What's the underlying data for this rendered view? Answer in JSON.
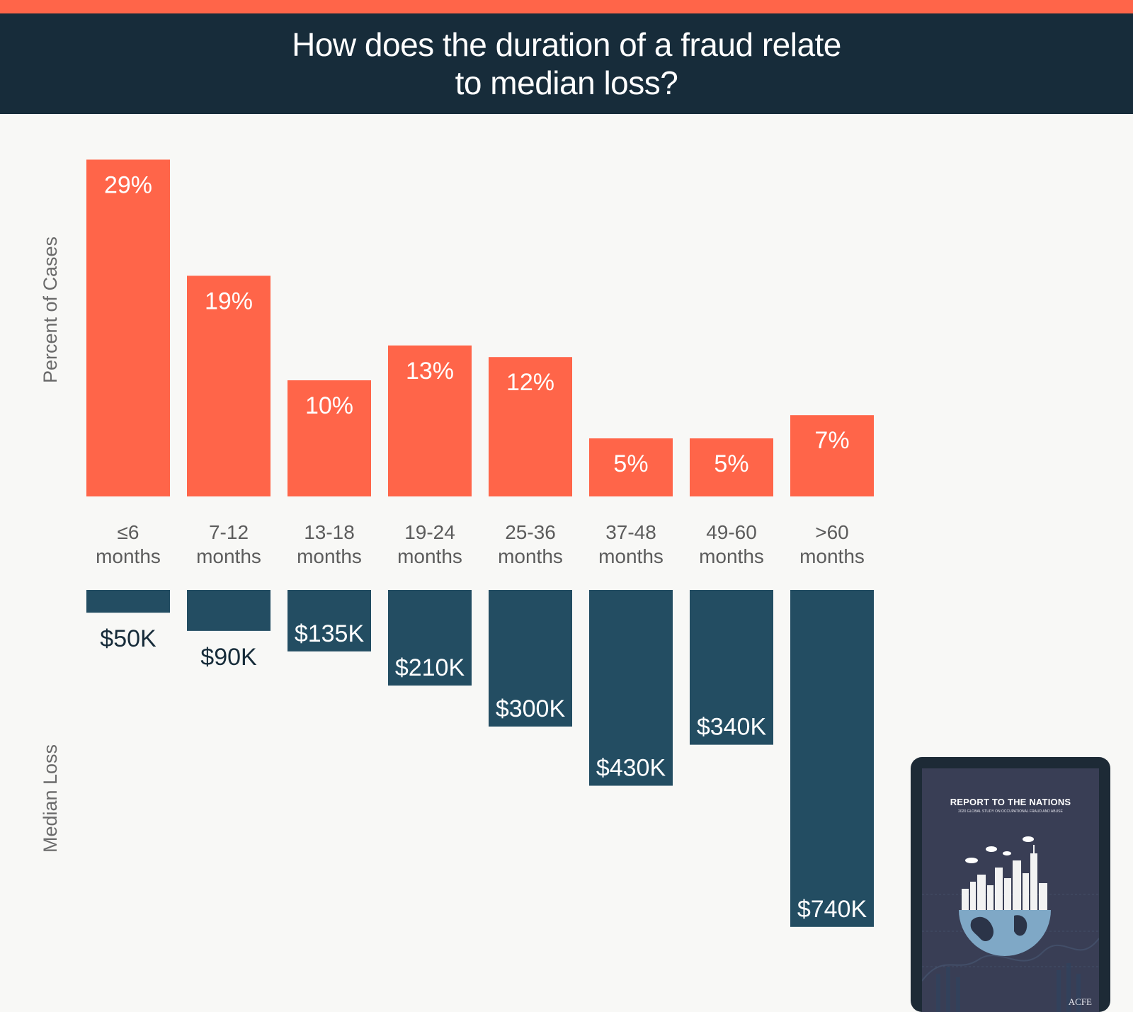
{
  "header": {
    "title_line1": "How does the duration of a fraud relate",
    "title_line2": "to median loss?"
  },
  "axis_titles": {
    "top": "Percent of Cases",
    "bottom": "Median Loss"
  },
  "colors": {
    "accent": "#ff6549",
    "header_bg": "#172c3a",
    "loss_bar": "#234d62",
    "background": "#f8f8f6"
  },
  "chart_data": {
    "type": "bar",
    "categories": [
      "≤6 months",
      "7-12 months",
      "13-18 months",
      "19-24 months",
      "25-36 months",
      "37-48 months",
      "49-60 months",
      ">60 months"
    ],
    "category_lines": [
      [
        "≤6",
        "months"
      ],
      [
        "7-12",
        "months"
      ],
      [
        "13-18",
        "months"
      ],
      [
        "19-24",
        "months"
      ],
      [
        "25-36",
        "months"
      ],
      [
        "37-48",
        "months"
      ],
      [
        "49-60",
        "months"
      ],
      [
        ">60",
        "months"
      ]
    ],
    "series": [
      {
        "name": "Percent of Cases",
        "values": [
          29,
          19,
          10,
          13,
          12,
          5,
          5,
          7
        ],
        "labels": [
          "29%",
          "19%",
          "10%",
          "13%",
          "12%",
          "5%",
          "5%",
          "7%"
        ]
      },
      {
        "name": "Median Loss",
        "values": [
          50000,
          90000,
          135000,
          210000,
          300000,
          430000,
          340000,
          740000
        ],
        "labels": [
          "$50K",
          "$90K",
          "$135K",
          "$210K",
          "$300K",
          "$430K",
          "$340K",
          "$740K"
        ]
      }
    ],
    "title": "How does the duration of a fraud relate to median loss?",
    "xlabel": "",
    "ylabel_top": "Percent of Cases",
    "ylabel_bottom": "Median Loss",
    "grid": false,
    "legend": "none"
  },
  "report": {
    "title": "REPORT TO THE NATIONS",
    "subtitle": "2020 GLOBAL STUDY ON OCCUPATIONAL FRAUD AND ABUSE",
    "logo": "ACFE"
  }
}
